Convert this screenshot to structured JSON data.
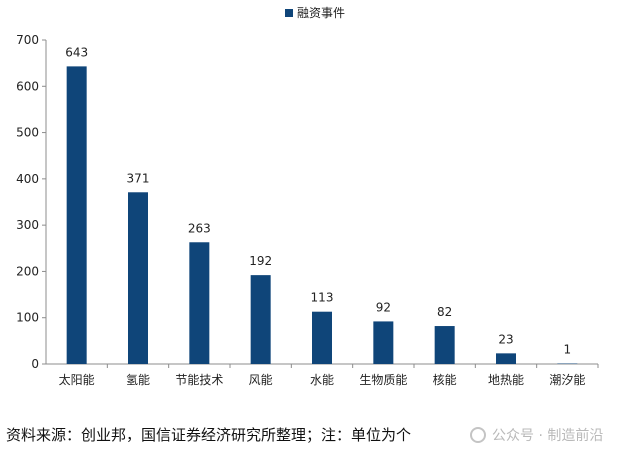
{
  "chart_data": {
    "type": "bar",
    "categories": [
      "太阳能",
      "氢能",
      "节能技术",
      "风能",
      "水能",
      "生物质能",
      "核能",
      "地热能",
      "潮汐能"
    ],
    "series": [
      {
        "name": "融资事件",
        "values": [
          643,
          371,
          263,
          192,
          113,
          92,
          82,
          23,
          1
        ],
        "color": "#0f4579"
      }
    ],
    "ylim": [
      0,
      700
    ],
    "yticks": [
      0,
      100,
      200,
      300,
      400,
      500,
      600,
      700
    ],
    "legend_position": "top-center",
    "grid": false
  },
  "footer": {
    "source": "资料来源：创业邦，国信证券经济研究所整理；注：单位为个"
  },
  "watermark": {
    "text": "公众号 · 制造前沿"
  }
}
